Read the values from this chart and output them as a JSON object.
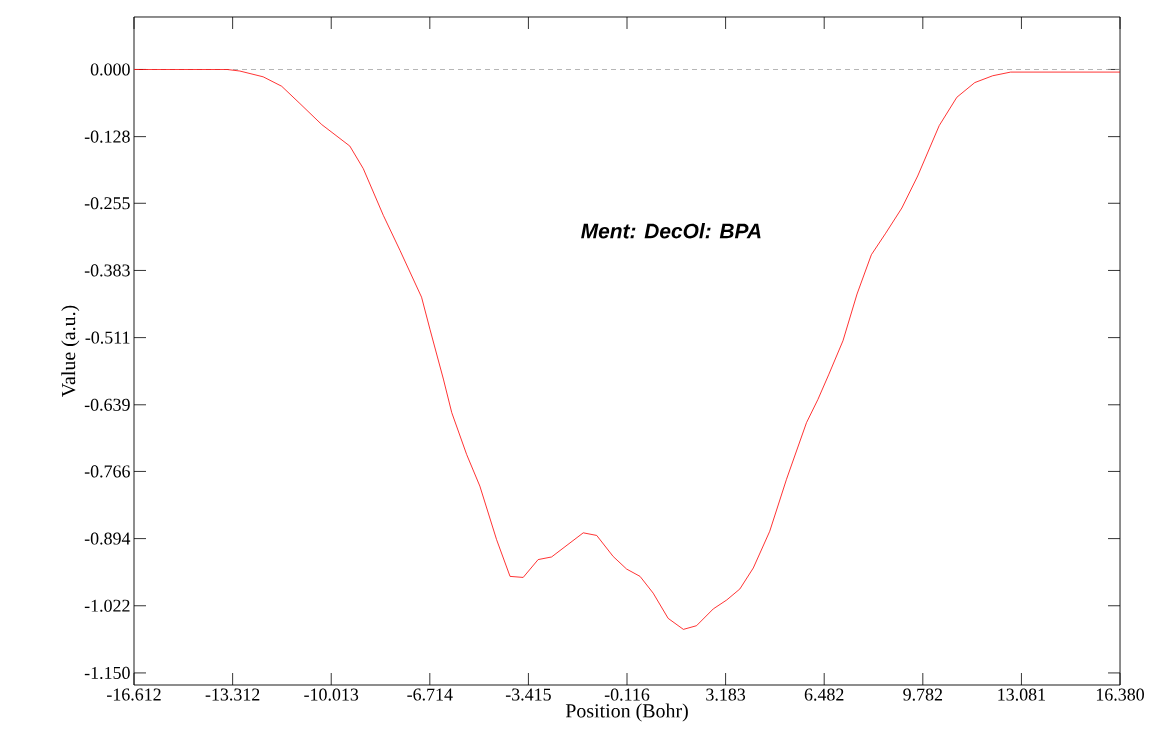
{
  "chart_data": {
    "type": "line",
    "xlabel": "Position (Bohr)",
    "ylabel": "Value (a.u.)",
    "annotations": [
      "Ment: DecOl: BPA"
    ],
    "x": [
      -16.612,
      -13.5,
      -13.07,
      -12.29,
      -11.67,
      -11.06,
      -10.33,
      -9.39,
      -8.94,
      -8.27,
      -7.71,
      -6.99,
      -6.71,
      -6.26,
      -5.98,
      -5.48,
      -5.04,
      -4.48,
      -4.03,
      -3.59,
      -3.09,
      -2.64,
      -1.58,
      -1.13,
      -0.58,
      -0.13,
      0.32,
      0.76,
      1.26,
      1.77,
      2.21,
      2.77,
      3.22,
      3.66,
      4.11,
      4.66,
      5.22,
      5.89,
      6.27,
      6.63,
      7.11,
      7.58,
      8.06,
      8.54,
      9.08,
      9.61,
      10.33,
      10.92,
      11.52,
      12.12,
      12.72,
      16.38
    ],
    "series": [
      {
        "color": "#ff0000",
        "values": [
          0,
          0,
          -0.003,
          -0.014,
          -0.032,
          -0.065,
          -0.105,
          -0.146,
          -0.189,
          -0.278,
          -0.345,
          -0.434,
          -0.495,
          -0.59,
          -0.654,
          -0.734,
          -0.794,
          -0.896,
          -0.966,
          -0.968,
          -0.934,
          -0.929,
          -0.883,
          -0.888,
          -0.928,
          -0.952,
          -0.966,
          -0.998,
          -1.046,
          -1.067,
          -1.06,
          -1.028,
          -1.011,
          -0.99,
          -0.95,
          -0.88,
          -0.781,
          -0.673,
          -0.629,
          -0.582,
          -0.517,
          -0.428,
          -0.353,
          -0.312,
          -0.264,
          -0.203,
          -0.107,
          -0.053,
          -0.025,
          -0.012,
          -0.005,
          -0.005
        ]
      }
    ],
    "xlim": [
      -16.612,
      16.38
    ],
    "ylim": [
      -1.173,
      0.1
    ],
    "xticks": [
      -16.612,
      -13.312,
      -10.013,
      -6.714,
      -3.415,
      -0.116,
      3.183,
      6.482,
      9.782,
      13.081,
      {
        "value": 16.38,
        "label": "16.380"
      }
    ],
    "yticks": [
      {
        "value": 0,
        "label": "0.000"
      },
      -0.128,
      -0.255,
      -0.383,
      -0.511,
      -0.639,
      -0.766,
      -0.894,
      -1.022,
      {
        "value": -1.15,
        "label": "-1.150"
      }
    ],
    "ref_lines": [
      {
        "axis": "y",
        "value": 0,
        "color": "#a0a0a0",
        "line_style": "dashed"
      }
    ],
    "grid": false,
    "marker": "none",
    "line_style": "solid"
  }
}
